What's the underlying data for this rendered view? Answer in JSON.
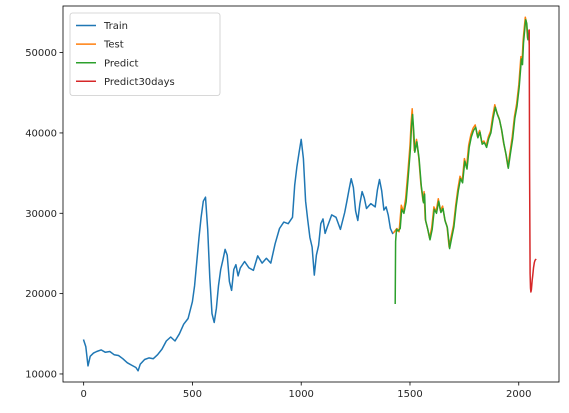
{
  "chart_data": {
    "type": "line",
    "title": "",
    "xlabel": "",
    "ylabel": "",
    "xlim": [
      -95,
      2185
    ],
    "ylim": [
      9000,
      55800
    ],
    "xticks": [
      0,
      500,
      1000,
      1500,
      2000
    ],
    "yticks": [
      10000,
      20000,
      30000,
      40000,
      50000
    ],
    "grid": false,
    "legend_position": "top-left",
    "series": [
      {
        "name": "Train",
        "color": "#1f77b4",
        "points": [
          [
            0,
            14200
          ],
          [
            10,
            13400
          ],
          [
            20,
            11000
          ],
          [
            30,
            12200
          ],
          [
            45,
            12600
          ],
          [
            60,
            12800
          ],
          [
            80,
            13000
          ],
          [
            100,
            12700
          ],
          [
            120,
            12800
          ],
          [
            140,
            12400
          ],
          [
            160,
            12300
          ],
          [
            180,
            11900
          ],
          [
            200,
            11400
          ],
          [
            220,
            11100
          ],
          [
            240,
            10800
          ],
          [
            250,
            10400
          ],
          [
            260,
            11200
          ],
          [
            280,
            11800
          ],
          [
            300,
            12000
          ],
          [
            320,
            11900
          ],
          [
            340,
            12400
          ],
          [
            360,
            13100
          ],
          [
            380,
            14100
          ],
          [
            400,
            14600
          ],
          [
            420,
            14100
          ],
          [
            440,
            15000
          ],
          [
            460,
            16200
          ],
          [
            480,
            16900
          ],
          [
            500,
            19000
          ],
          [
            510,
            21000
          ],
          [
            520,
            24000
          ],
          [
            530,
            27000
          ],
          [
            540,
            29500
          ],
          [
            550,
            31500
          ],
          [
            560,
            32000
          ],
          [
            570,
            28000
          ],
          [
            580,
            22000
          ],
          [
            590,
            17500
          ],
          [
            600,
            16400
          ],
          [
            610,
            18200
          ],
          [
            620,
            21000
          ],
          [
            630,
            23000
          ],
          [
            640,
            24200
          ],
          [
            650,
            25500
          ],
          [
            660,
            24800
          ],
          [
            670,
            21500
          ],
          [
            680,
            20400
          ],
          [
            690,
            23000
          ],
          [
            700,
            23600
          ],
          [
            710,
            22200
          ],
          [
            720,
            23200
          ],
          [
            740,
            24000
          ],
          [
            760,
            23200
          ],
          [
            780,
            22900
          ],
          [
            800,
            24700
          ],
          [
            820,
            23800
          ],
          [
            840,
            24400
          ],
          [
            860,
            23800
          ],
          [
            880,
            26200
          ],
          [
            900,
            28100
          ],
          [
            920,
            28900
          ],
          [
            940,
            28700
          ],
          [
            960,
            29500
          ],
          [
            970,
            33500
          ],
          [
            980,
            35800
          ],
          [
            990,
            37500
          ],
          [
            1000,
            39200
          ],
          [
            1010,
            36800
          ],
          [
            1020,
            31500
          ],
          [
            1030,
            29200
          ],
          [
            1040,
            27000
          ],
          [
            1050,
            25800
          ],
          [
            1060,
            22300
          ],
          [
            1070,
            24800
          ],
          [
            1080,
            26000
          ],
          [
            1090,
            28700
          ],
          [
            1100,
            29300
          ],
          [
            1110,
            27500
          ],
          [
            1120,
            28300
          ],
          [
            1140,
            29800
          ],
          [
            1160,
            29500
          ],
          [
            1180,
            28000
          ],
          [
            1200,
            30100
          ],
          [
            1210,
            31500
          ],
          [
            1220,
            33000
          ],
          [
            1230,
            34300
          ],
          [
            1240,
            33200
          ],
          [
            1250,
            30300
          ],
          [
            1260,
            29100
          ],
          [
            1270,
            31200
          ],
          [
            1280,
            32700
          ],
          [
            1290,
            31900
          ],
          [
            1300,
            30600
          ],
          [
            1320,
            31200
          ],
          [
            1340,
            30800
          ],
          [
            1350,
            32900
          ],
          [
            1360,
            34200
          ],
          [
            1370,
            32800
          ],
          [
            1380,
            30400
          ],
          [
            1390,
            30800
          ],
          [
            1400,
            29800
          ],
          [
            1410,
            28100
          ],
          [
            1420,
            27500
          ]
        ]
      },
      {
        "name": "Test",
        "color": "#ff7f0e",
        "points": [
          [
            1425,
            27600
          ],
          [
            1440,
            28100
          ],
          [
            1450,
            27700
          ],
          [
            1460,
            31000
          ],
          [
            1470,
            30200
          ],
          [
            1480,
            31800
          ],
          [
            1490,
            35000
          ],
          [
            1500,
            38500
          ],
          [
            1505,
            41200
          ],
          [
            1510,
            43000
          ],
          [
            1515,
            40500
          ],
          [
            1520,
            37800
          ],
          [
            1530,
            39200
          ],
          [
            1540,
            37000
          ],
          [
            1550,
            33600
          ],
          [
            1560,
            31500
          ],
          [
            1565,
            32700
          ],
          [
            1570,
            29300
          ],
          [
            1580,
            28200
          ],
          [
            1590,
            26900
          ],
          [
            1600,
            28200
          ],
          [
            1610,
            30800
          ],
          [
            1620,
            30200
          ],
          [
            1630,
            31800
          ],
          [
            1640,
            30300
          ],
          [
            1650,
            30900
          ],
          [
            1660,
            29200
          ],
          [
            1670,
            28400
          ],
          [
            1680,
            25800
          ],
          [
            1690,
            27200
          ],
          [
            1700,
            28500
          ],
          [
            1710,
            31000
          ],
          [
            1720,
            33000
          ],
          [
            1730,
            34600
          ],
          [
            1740,
            34000
          ],
          [
            1750,
            36800
          ],
          [
            1760,
            35700
          ],
          [
            1770,
            38500
          ],
          [
            1780,
            39800
          ],
          [
            1790,
            40600
          ],
          [
            1800,
            41000
          ],
          [
            1810,
            39600
          ],
          [
            1820,
            40300
          ],
          [
            1830,
            38800
          ],
          [
            1840,
            39000
          ],
          [
            1850,
            38400
          ],
          [
            1860,
            39500
          ],
          [
            1870,
            40200
          ],
          [
            1880,
            42000
          ],
          [
            1890,
            43500
          ],
          [
            1900,
            42500
          ],
          [
            1910,
            41800
          ],
          [
            1920,
            40500
          ],
          [
            1930,
            38800
          ],
          [
            1940,
            37500
          ],
          [
            1950,
            35800
          ],
          [
            1960,
            37700
          ],
          [
            1970,
            39500
          ],
          [
            1980,
            42000
          ],
          [
            1990,
            43600
          ],
          [
            2000,
            46000
          ],
          [
            2010,
            49500
          ],
          [
            2015,
            48700
          ],
          [
            2020,
            51500
          ],
          [
            2025,
            53000
          ],
          [
            2030,
            54400
          ],
          [
            2035,
            53800
          ],
          [
            2040,
            51800
          ],
          [
            2045,
            52700
          ],
          [
            2048,
            51000
          ]
        ]
      },
      {
        "name": "Predict",
        "color": "#2ca02c",
        "points": [
          [
            1432,
            18800
          ],
          [
            1434,
            26500
          ],
          [
            1438,
            28000
          ],
          [
            1445,
            27800
          ],
          [
            1455,
            28100
          ],
          [
            1462,
            30500
          ],
          [
            1472,
            30000
          ],
          [
            1482,
            31400
          ],
          [
            1492,
            34500
          ],
          [
            1502,
            38000
          ],
          [
            1507,
            40800
          ],
          [
            1512,
            42300
          ],
          [
            1517,
            40300
          ],
          [
            1522,
            37600
          ],
          [
            1532,
            38900
          ],
          [
            1542,
            36800
          ],
          [
            1552,
            33400
          ],
          [
            1562,
            31300
          ],
          [
            1567,
            32400
          ],
          [
            1572,
            29100
          ],
          [
            1582,
            28000
          ],
          [
            1592,
            26700
          ],
          [
            1602,
            28000
          ],
          [
            1612,
            30500
          ],
          [
            1622,
            30000
          ],
          [
            1632,
            31500
          ],
          [
            1642,
            30100
          ],
          [
            1652,
            30600
          ],
          [
            1662,
            29000
          ],
          [
            1672,
            28200
          ],
          [
            1682,
            25600
          ],
          [
            1692,
            27000
          ],
          [
            1702,
            28300
          ],
          [
            1712,
            30800
          ],
          [
            1722,
            32800
          ],
          [
            1732,
            34300
          ],
          [
            1742,
            33800
          ],
          [
            1752,
            36500
          ],
          [
            1762,
            35500
          ],
          [
            1772,
            38200
          ],
          [
            1782,
            39500
          ],
          [
            1792,
            40300
          ],
          [
            1802,
            40700
          ],
          [
            1812,
            39400
          ],
          [
            1822,
            40100
          ],
          [
            1832,
            38600
          ],
          [
            1842,
            38800
          ],
          [
            1852,
            38200
          ],
          [
            1862,
            39300
          ],
          [
            1872,
            40000
          ],
          [
            1882,
            41800
          ],
          [
            1892,
            43200
          ],
          [
            1902,
            42300
          ],
          [
            1912,
            41600
          ],
          [
            1922,
            40300
          ],
          [
            1932,
            38600
          ],
          [
            1942,
            37300
          ],
          [
            1952,
            35600
          ],
          [
            1962,
            37500
          ],
          [
            1972,
            39300
          ],
          [
            1982,
            41800
          ],
          [
            1992,
            43300
          ],
          [
            2002,
            45700
          ],
          [
            2012,
            49200
          ],
          [
            2017,
            48500
          ],
          [
            2022,
            51200
          ],
          [
            2027,
            52700
          ],
          [
            2032,
            54100
          ],
          [
            2037,
            53600
          ],
          [
            2042,
            51600
          ],
          [
            2047,
            52400
          ]
        ]
      },
      {
        "name": "Predict30days",
        "color": "#d62728",
        "points": [
          [
            2048,
            52800
          ],
          [
            2050,
            35000
          ],
          [
            2052,
            22500
          ],
          [
            2054,
            20700
          ],
          [
            2056,
            20200
          ],
          [
            2058,
            20500
          ],
          [
            2060,
            21100
          ],
          [
            2062,
            21700
          ],
          [
            2064,
            22200
          ],
          [
            2066,
            22700
          ],
          [
            2068,
            23200
          ],
          [
            2070,
            23600
          ],
          [
            2072,
            23900
          ],
          [
            2074,
            24100
          ],
          [
            2076,
            24200
          ],
          [
            2078,
            24250
          ]
        ]
      }
    ]
  }
}
